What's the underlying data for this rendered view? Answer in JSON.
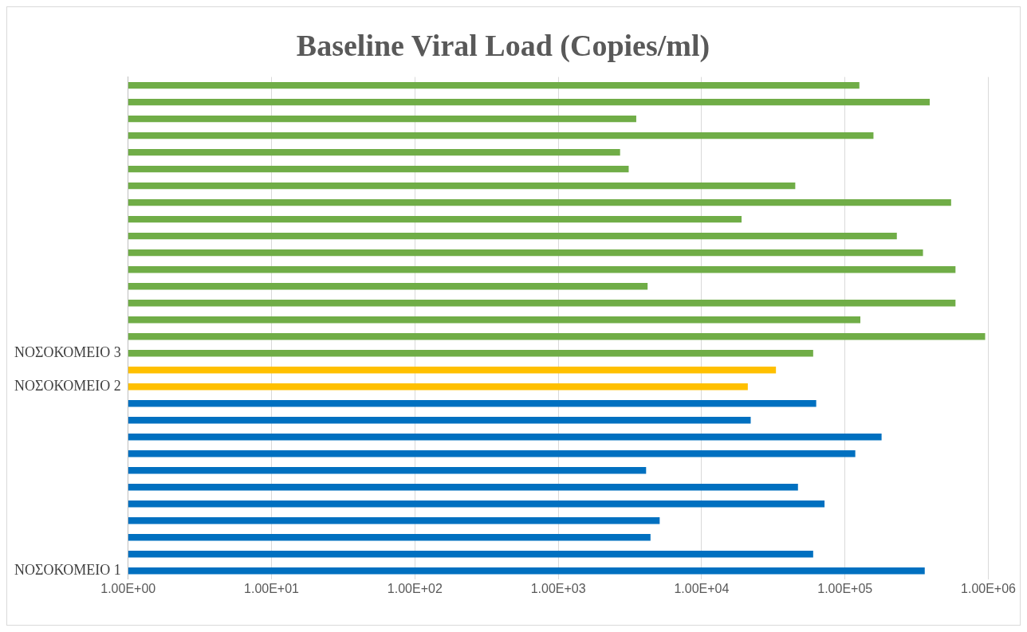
{
  "chart_data": {
    "type": "bar",
    "orientation": "horizontal",
    "title": "Baseline Viral Load (Copies/ml)",
    "categories": [
      null,
      null,
      null,
      null,
      null,
      null,
      null,
      null,
      null,
      null,
      null,
      null,
      null,
      null,
      null,
      null,
      "ΝΟΣΟΚΟΜΕΙΟ 3",
      null,
      "ΝΟΣΟΚΟΜΕΙΟ 2",
      null,
      null,
      null,
      null,
      null,
      null,
      null,
      null,
      null,
      null,
      "ΝΟΣΟΚΟΜΕΙΟ 1"
    ],
    "values": [
      126000,
      390000,
      3500,
      158000,
      2700,
      3100,
      45000,
      550000,
      19000,
      230000,
      350000,
      590000,
      4200,
      590000,
      128000,
      950000,
      60000,
      33000,
      21000,
      63000,
      22000,
      180000,
      118000,
      4100,
      47000,
      72000,
      5100,
      4400,
      60000,
      360000
    ],
    "colors": [
      "#70ad47",
      "#70ad47",
      "#70ad47",
      "#70ad47",
      "#70ad47",
      "#70ad47",
      "#70ad47",
      "#70ad47",
      "#70ad47",
      "#70ad47",
      "#70ad47",
      "#70ad47",
      "#70ad47",
      "#70ad47",
      "#70ad47",
      "#70ad47",
      "#70ad47",
      "#ffc000",
      "#ffc000",
      "#0070c0",
      "#0070c0",
      "#0070c0",
      "#0070c0",
      "#0070c0",
      "#0070c0",
      "#0070c0",
      "#0070c0",
      "#0070c0",
      "#0070c0",
      "#0070c0"
    ],
    "log": "x",
    "xlim": [
      1,
      1000000
    ],
    "xticks": [
      {
        "value": 1,
        "label": "1.00E+00"
      },
      {
        "value": 10,
        "label": "1.00E+01"
      },
      {
        "value": 100,
        "label": "1.00E+02"
      },
      {
        "value": 1000,
        "label": "1.00E+03"
      },
      {
        "value": 10000,
        "label": "1.00E+04"
      },
      {
        "value": 100000,
        "label": "1.00E+05"
      },
      {
        "value": 1000000,
        "label": "1.00E+06"
      }
    ],
    "grid": "x",
    "legend": false
  }
}
